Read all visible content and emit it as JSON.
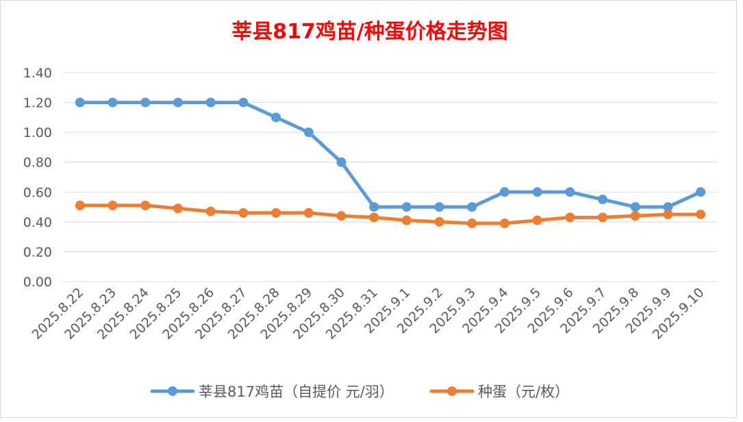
{
  "chart_data": {
    "type": "line",
    "title": "莘县817鸡苗/种蛋价格走势图",
    "xlabel": "",
    "ylabel": "",
    "ylim": [
      0,
      1.4
    ],
    "yticks": [
      "0.00",
      "0.20",
      "0.40",
      "0.60",
      "0.80",
      "1.00",
      "1.20",
      "1.40"
    ],
    "grid": true,
    "legend_position": "bottom",
    "categories": [
      "2025.8.22",
      "2025.8.23",
      "2025.8.24",
      "2025.8.25",
      "2025.8.26",
      "2025.8.27",
      "2025.8.28",
      "2025.8.29",
      "2025.8.30",
      "2025.8.31",
      "2025.9.1",
      "2025.9.2",
      "2025.9.3",
      "2025.9.4",
      "2025.9.5",
      "2025.9.6",
      "2025.9.7",
      "2025.9.8",
      "2025.9.9",
      "2025.9.10"
    ],
    "series": [
      {
        "name": "莘县817鸡苗（自提价 元/羽）",
        "color": "#5b9bd5",
        "values": [
          1.2,
          1.2,
          1.2,
          1.2,
          1.2,
          1.2,
          1.1,
          1.0,
          0.8,
          0.5,
          0.5,
          0.5,
          0.5,
          0.6,
          0.6,
          0.6,
          0.55,
          0.5,
          0.5,
          0.6
        ]
      },
      {
        "name": "种蛋（元/枚）",
        "color": "#ed7d31",
        "values": [
          0.51,
          0.51,
          0.51,
          0.49,
          0.47,
          0.46,
          0.46,
          0.46,
          0.44,
          0.43,
          0.41,
          0.4,
          0.39,
          0.39,
          0.41,
          0.43,
          0.43,
          0.44,
          0.45,
          0.45
        ]
      }
    ]
  }
}
